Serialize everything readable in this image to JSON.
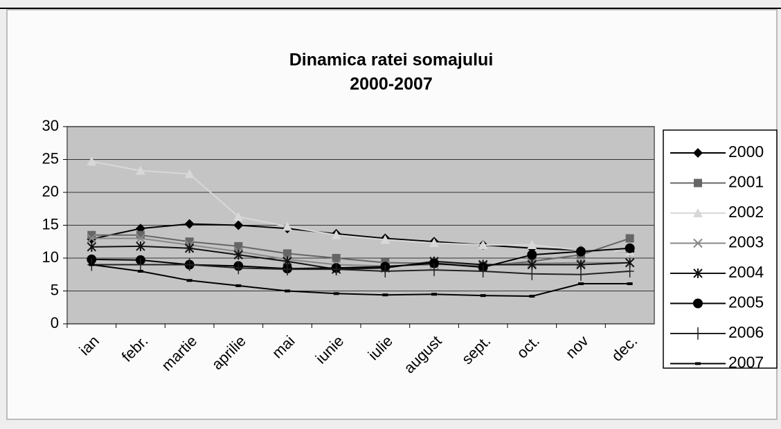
{
  "chart_data": {
    "type": "line",
    "title": "Dinamica ratei somajului",
    "subtitle": "2000-2007",
    "categories": [
      "ian",
      "febr.",
      "martie",
      "aprilie",
      "mai",
      "iunie",
      "iulie",
      "august",
      "sept.",
      "oct.",
      "nov",
      "dec."
    ],
    "series": [
      {
        "name": "2000",
        "color": "#000000",
        "marker": "diamond",
        "values": [
          12.9,
          14.5,
          15.2,
          15,
          14.5,
          13.7,
          13,
          12.5,
          12,
          11.5,
          11.2,
          11
        ]
      },
      {
        "name": "2001",
        "color": "#666666",
        "marker": "square",
        "values": [
          13.5,
          13.5,
          12.5,
          11.8,
          10.7,
          10,
          9.3,
          9.2,
          8.8,
          9.5,
          10.5,
          13
        ]
      },
      {
        "name": "2002",
        "color": "#d8d8d8",
        "marker": "triangle",
        "values": [
          24.7,
          23.3,
          22.8,
          16.3,
          14.8,
          13.5,
          12.8,
          12.3,
          12,
          12,
          11.2,
          11
        ]
      },
      {
        "name": "2003",
        "color": "#888888",
        "marker": "x",
        "values": [
          13,
          13,
          12,
          11,
          9.8,
          9,
          8.8,
          9,
          9,
          9.2,
          9.3,
          9.3
        ]
      },
      {
        "name": "2004",
        "color": "#111111",
        "marker": "star",
        "values": [
          11.7,
          11.8,
          11.5,
          10.5,
          9.5,
          8.3,
          8.5,
          9.5,
          9,
          9,
          9,
          9.3
        ]
      },
      {
        "name": "2005",
        "color": "#000000",
        "marker": "circle",
        "values": [
          9.8,
          9.7,
          9,
          8.8,
          8.4,
          8.5,
          8.7,
          9.2,
          8.6,
          10.5,
          11,
          11.5
        ]
      },
      {
        "name": "2006",
        "color": "#222222",
        "marker": "plus",
        "values": [
          9,
          9,
          9,
          8.5,
          8.3,
          8.3,
          8,
          8.2,
          8,
          7.6,
          7.5,
          8
        ]
      },
      {
        "name": "2007",
        "color": "#000000",
        "marker": "dash",
        "values": [
          9,
          8,
          6.6,
          5.8,
          5,
          4.6,
          4.4,
          4.5,
          4.3,
          4.2,
          6.1,
          6.1
        ]
      }
    ],
    "ylim": [
      0,
      30
    ],
    "yticks": [
      0,
      5,
      10,
      15,
      20,
      25,
      30
    ],
    "grid": true,
    "legend": "right"
  }
}
